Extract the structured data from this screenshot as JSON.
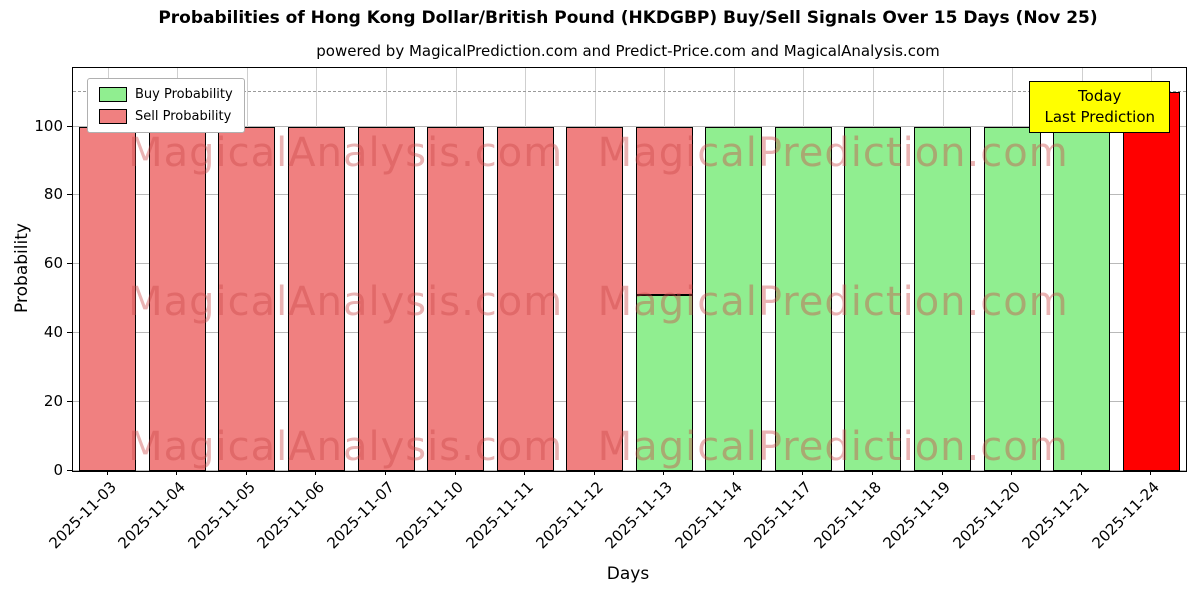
{
  "title": "Probabilities of Hong Kong Dollar/British Pound (HKDGBP) Buy/Sell Signals Over 15 Days (Nov 25)",
  "subtitle": "powered by MagicalPrediction.com and Predict-Price.com and MagicalAnalysis.com",
  "axes": {
    "xlabel": "Days",
    "ylabel": "Probability"
  },
  "legend": {
    "items": [
      {
        "label": "Buy Probability",
        "color": "#90EE90"
      },
      {
        "label": "Sell Probability",
        "color": "#F08080"
      }
    ]
  },
  "annotation": {
    "line1": "Today",
    "line2": "Last Prediction",
    "bg": "#FFFF00"
  },
  "watermarks": {
    "left": "MagicalAnalysis.com",
    "right": "MagicalPrediction.com"
  },
  "chart_data": {
    "type": "bar",
    "stacked": true,
    "title": "Probabilities of Hong Kong Dollar/British Pound (HKDGBP) Buy/Sell Signals Over 15 Days (Nov 25)",
    "xlabel": "Days",
    "ylabel": "Probability",
    "categories": [
      "2025-11-03",
      "2025-11-04",
      "2025-11-05",
      "2025-11-06",
      "2025-11-07",
      "2025-11-10",
      "2025-11-11",
      "2025-11-12",
      "2025-11-13",
      "2025-11-14",
      "2025-11-17",
      "2025-11-18",
      "2025-11-19",
      "2025-11-20",
      "2025-11-21",
      "2025-11-24"
    ],
    "series": [
      {
        "name": "Buy Probability",
        "color": "#90EE90",
        "values": [
          0,
          0,
          0,
          0,
          0,
          0,
          0,
          0,
          51,
          100,
          100,
          100,
          100,
          100,
          100,
          0
        ]
      },
      {
        "name": "Sell Probability",
        "color": "#F08080",
        "values": [
          100,
          100,
          100,
          100,
          100,
          100,
          100,
          100,
          49,
          0,
          0,
          0,
          0,
          0,
          0,
          0
        ]
      },
      {
        "name": "Today / Last Prediction",
        "color": "#FF0000",
        "values": [
          0,
          0,
          0,
          0,
          0,
          0,
          0,
          0,
          0,
          0,
          0,
          0,
          0,
          0,
          0,
          110
        ]
      }
    ],
    "yticks": [
      0,
      20,
      40,
      60,
      80,
      100
    ],
    "ylim": [
      0,
      117
    ],
    "dashed_line_y": 110,
    "grid": true,
    "legend_position": "upper left"
  }
}
